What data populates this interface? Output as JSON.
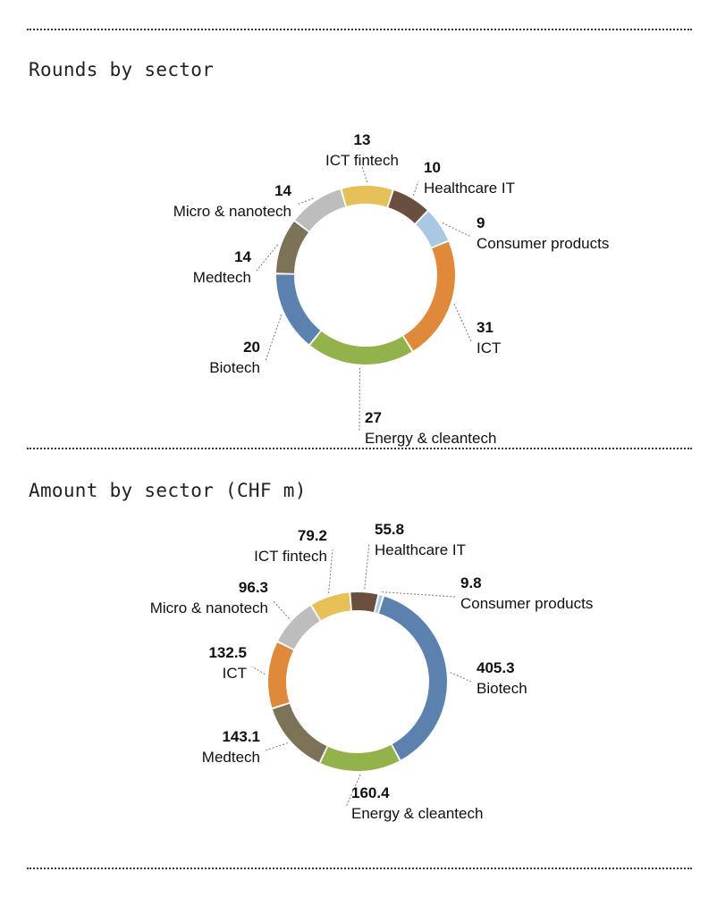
{
  "sections": {
    "rounds_title": "Rounds by sector",
    "amount_title": "Amount by sector (CHF m)"
  },
  "colors": {
    "ICT fintech": "#e6c15a",
    "Healthcare IT": "#6a4f3e",
    "Consumer products": "#a9c8e2",
    "ICT": "#df8a3a",
    "Energy & cleantech": "#93b24c",
    "Biotech": "#5b82af",
    "Medtech": "#7b7258",
    "Micro & nanotech": "#bdbdbd"
  },
  "chart_data": [
    {
      "type": "pie",
      "style": "donut",
      "title": "Rounds by sector",
      "slices": [
        {
          "label": "ICT fintech",
          "value": 13,
          "display": "13"
        },
        {
          "label": "Healthcare IT",
          "value": 10,
          "display": "10"
        },
        {
          "label": "Consumer products",
          "value": 9,
          "display": "9"
        },
        {
          "label": "ICT",
          "value": 31,
          "display": "31"
        },
        {
          "label": "Energy & cleantech",
          "value": 27,
          "display": "27"
        },
        {
          "label": "Biotech",
          "value": 20,
          "display": "20"
        },
        {
          "label": "Medtech",
          "value": 14,
          "display": "14"
        },
        {
          "label": "Micro & nanotech",
          "value": 14,
          "display": "14"
        }
      ]
    },
    {
      "type": "pie",
      "style": "donut",
      "title": "Amount by sector (CHF m)",
      "slices": [
        {
          "label": "Healthcare IT",
          "value": 55.8,
          "display": "55.8"
        },
        {
          "label": "Consumer products",
          "value": 9.8,
          "display": "9.8"
        },
        {
          "label": "Biotech",
          "value": 405.3,
          "display": "405.3"
        },
        {
          "label": "Energy & cleantech",
          "value": 160.4,
          "display": "160.4"
        },
        {
          "label": "Medtech",
          "value": 143.1,
          "display": "143.1"
        },
        {
          "label": "ICT",
          "value": 132.5,
          "display": "132.5"
        },
        {
          "label": "Micro & nanotech",
          "value": 96.3,
          "display": "96.3"
        },
        {
          "label": "ICT fintech",
          "value": 79.2,
          "display": "79.2"
        }
      ]
    }
  ]
}
